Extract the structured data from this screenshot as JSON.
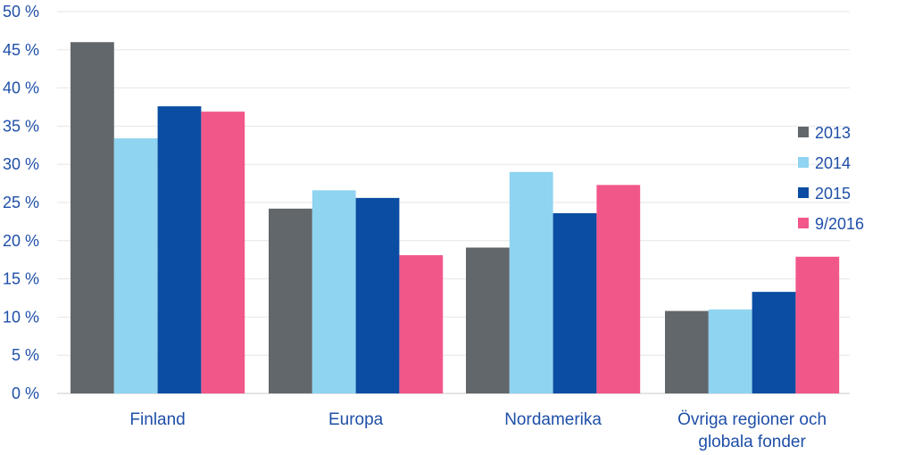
{
  "chart_data": {
    "type": "bar",
    "categories": [
      "Finland",
      "Europa",
      "Nordamerika",
      "Övriga regioner och globala fonder"
    ],
    "category_lines": [
      [
        "Finland"
      ],
      [
        "Europa"
      ],
      [
        "Nordamerika"
      ],
      [
        "Övriga regioner och",
        "globala fonder"
      ]
    ],
    "series": [
      {
        "name": "2013",
        "color": "#62676b",
        "values": [
          46,
          24.2,
          19.1,
          10.8
        ]
      },
      {
        "name": "2014",
        "color": "#8fd4f1",
        "values": [
          33.4,
          26.6,
          29.0,
          11.0
        ]
      },
      {
        "name": "2015",
        "color": "#0a4da2",
        "values": [
          37.6,
          25.6,
          23.6,
          13.3
        ]
      },
      {
        "name": "9/2016",
        "color": "#f2578a",
        "values": [
          36.9,
          18.1,
          27.3,
          17.9
        ]
      }
    ],
    "ylim": [
      0,
      50
    ],
    "yticks": [
      0,
      5,
      10,
      15,
      20,
      25,
      30,
      35,
      40,
      45,
      50
    ],
    "ytick_labels": [
      "0 %",
      "5 %",
      "10 %",
      "15 %",
      "20 %",
      "25 %",
      "30 %",
      "35 %",
      "40 %",
      "45 %",
      "50 %"
    ],
    "grid": true,
    "legend_position": "right",
    "title": "",
    "xlabel": "",
    "ylabel": ""
  }
}
